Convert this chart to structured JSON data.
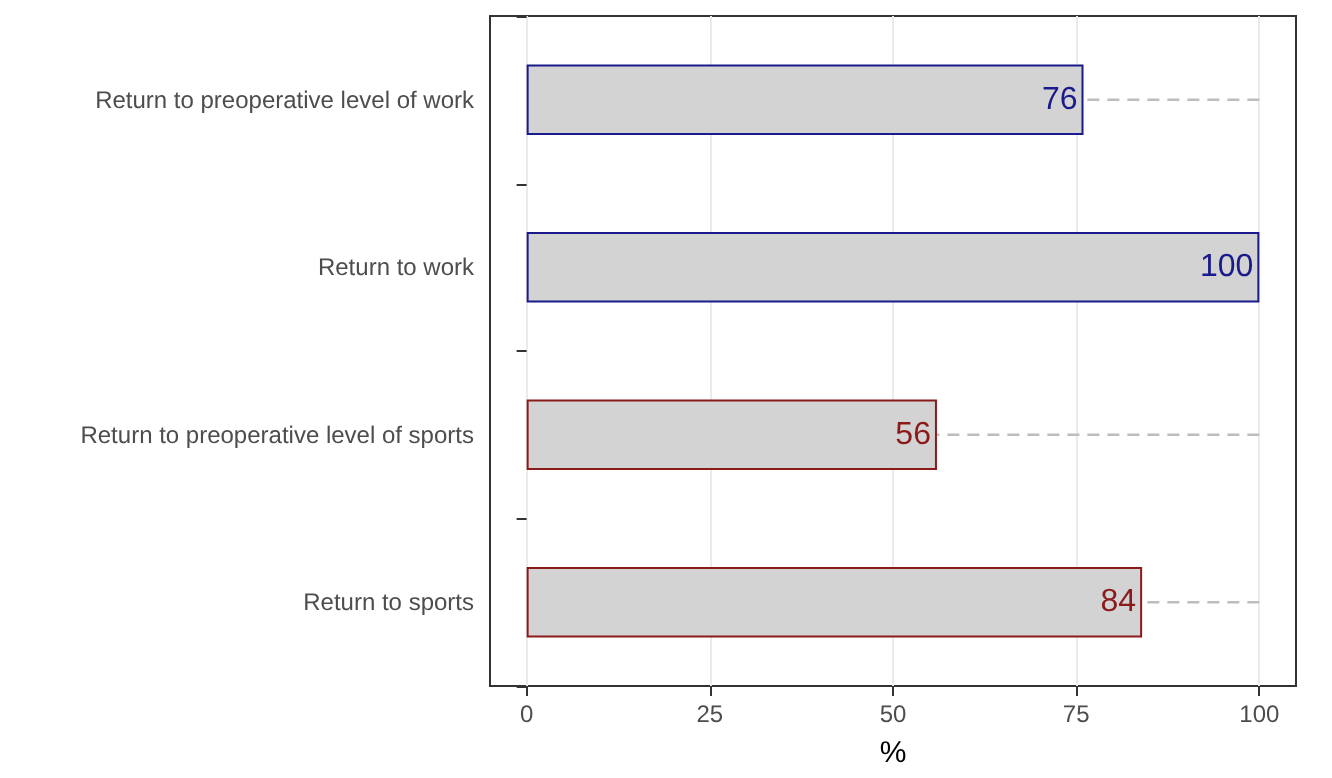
{
  "chart_data": {
    "type": "bar",
    "orientation": "horizontal",
    "xlabel": "%",
    "categories": [
      "Return to preoperative level of work",
      "Return to work",
      "Return to preoperative level of sports",
      "Return to sports"
    ],
    "values": [
      76,
      100,
      56,
      84
    ],
    "colors": [
      "#1a1a8c",
      "#1a1a8c",
      "#8b1a1a",
      "#8b1a1a"
    ],
    "errors": [
      [
        76,
        100
      ],
      [
        100,
        100
      ],
      [
        56,
        100
      ],
      [
        84,
        100
      ]
    ],
    "data_labels": true,
    "xlim": [
      -5,
      105
    ],
    "xticks": [
      0,
      25,
      50,
      75,
      100
    ],
    "grid": "x",
    "line_style": "dashed"
  }
}
